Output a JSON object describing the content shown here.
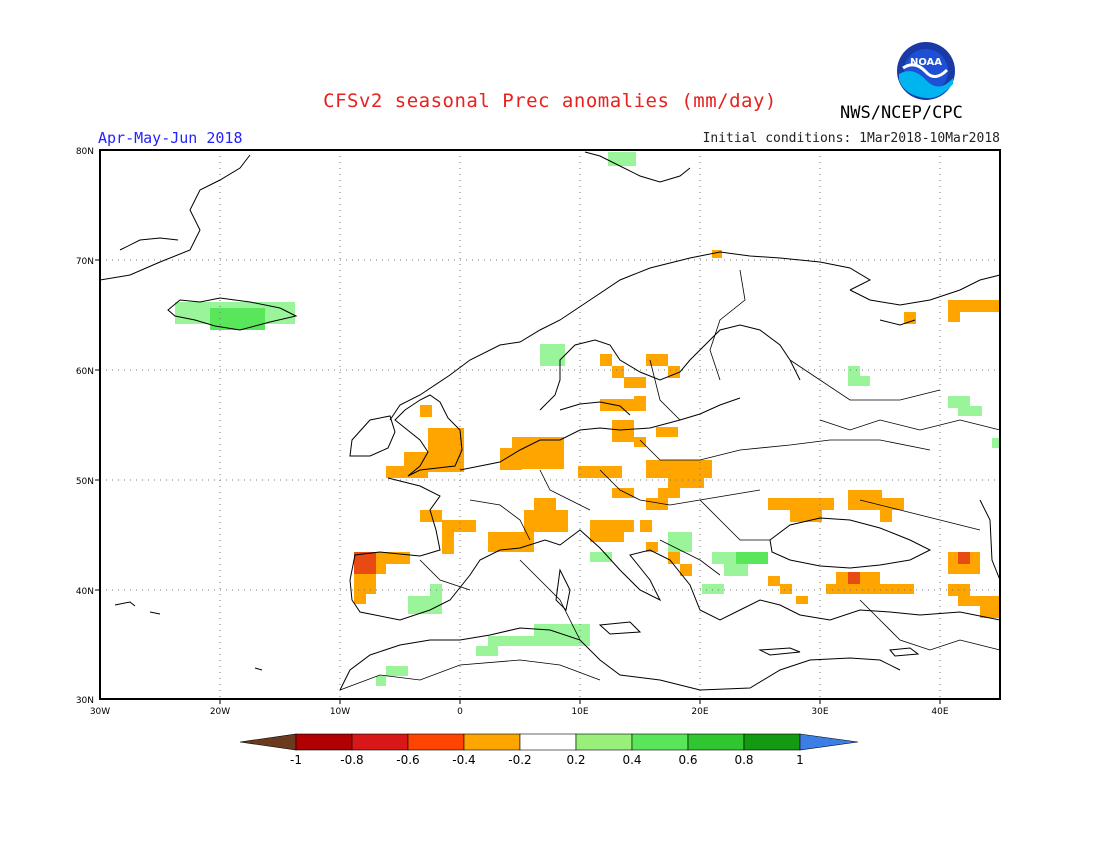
{
  "header": {
    "title": "CFSv2 seasonal Prec anomalies (mm/day)",
    "period": "Apr-May-Jun 2018",
    "initial_conditions": "Initial conditions: 1Mar2018-10Mar2018",
    "agency": "NWS/NCEP/CPC",
    "logo_text": "NOAA"
  },
  "map": {
    "lon_range": [
      -30,
      45
    ],
    "lat_range": [
      30,
      80
    ],
    "lon_ticks": [
      "30W",
      "20W",
      "10W",
      "0",
      "10E",
      "20E",
      "30E",
      "40E"
    ],
    "lat_ticks": [
      "80N",
      "70N",
      "60N",
      "50N",
      "40N",
      "30N"
    ]
  },
  "legend": {
    "labels": [
      "-1",
      "-0.8",
      "-0.6",
      "-0.4",
      "-0.2",
      "0.2",
      "0.4",
      "0.6",
      "0.8",
      "1"
    ],
    "colors": [
      "#6b3a1e",
      "#b00000",
      "#d81818",
      "#ff4500",
      "#ffa500",
      "#ffffff",
      "#98f07a",
      "#5ae65a",
      "#2fc62f",
      "#129a12",
      "#3a7ee6"
    ]
  },
  "colors": {
    "dry_light": "#ffa500",
    "dry_strong": "#e84a14",
    "wet_light": "#9af59a",
    "wet_medium": "#5ae65a",
    "wet_strong": "#2fc62f"
  }
}
